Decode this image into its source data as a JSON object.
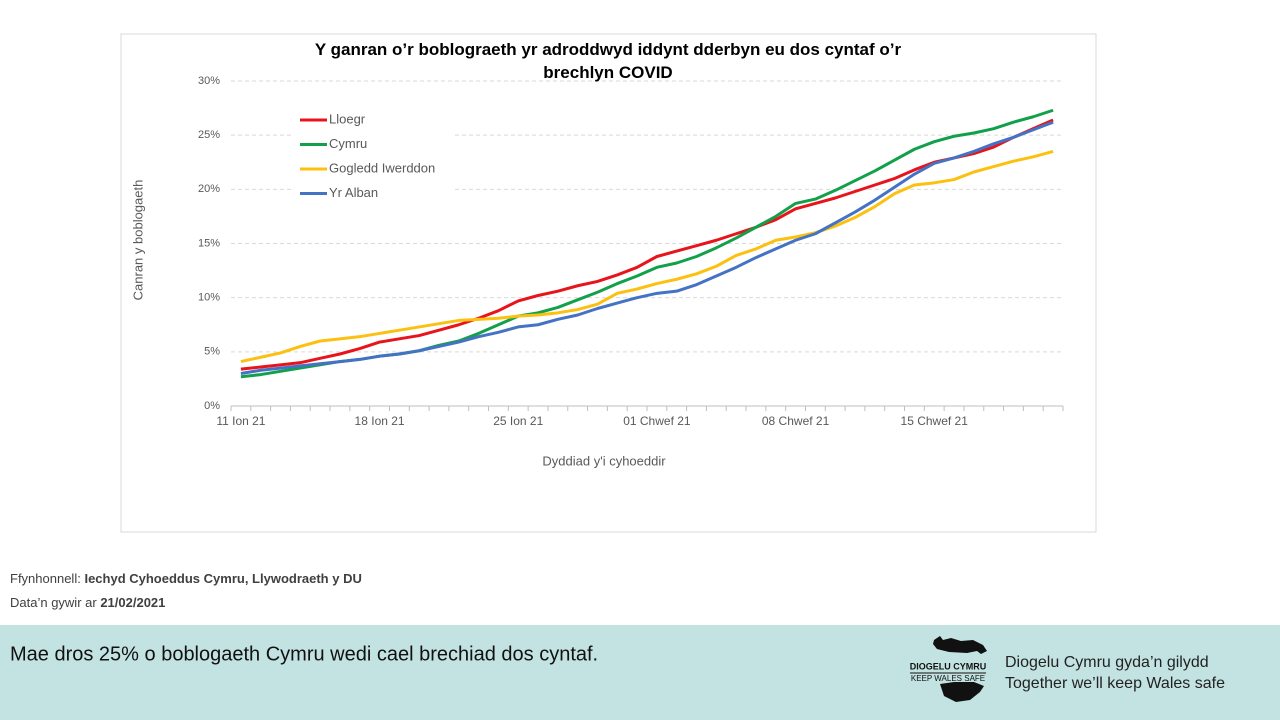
{
  "chart_data": {
    "type": "line",
    "title": "Y ganran o’r boblograeth yr adroddwyd iddynt dderbyn eu dos cyntaf o’r brechlyn COVID",
    "y_label": "Canran y boblogaeth",
    "x_label": "Dyddiad y'i cyhoeddir",
    "categories": [
      "11 Ion 21",
      null,
      null,
      null,
      null,
      null,
      null,
      "18 Ion 21",
      null,
      null,
      null,
      null,
      null,
      null,
      "25 Ion 21",
      null,
      null,
      null,
      null,
      null,
      null,
      "01 Chwef 21",
      null,
      null,
      null,
      null,
      null,
      null,
      "08 Chwef 21",
      null,
      null,
      null,
      null,
      null,
      null,
      "15 Chwef 21",
      null,
      null,
      null,
      null,
      null,
      null
    ],
    "series": [
      {
        "name": "Lloegr",
        "color": "#e8141b",
        "values": [
          3.4,
          3.6,
          3.8,
          4.0,
          4.4,
          4.8,
          5.3,
          5.9,
          6.2,
          6.5,
          7.0,
          7.5,
          8.1,
          8.8,
          9.7,
          10.2,
          10.6,
          11.1,
          11.5,
          12.1,
          12.8,
          13.8,
          14.3,
          14.8,
          15.3,
          15.9,
          16.5,
          17.2,
          18.2,
          18.7,
          19.2,
          19.8,
          20.4,
          21.0,
          21.8,
          22.5,
          22.9,
          23.3,
          23.9,
          24.8,
          25.6,
          26.4
        ]
      },
      {
        "name": "Cymru",
        "color": "#12a04a",
        "values": [
          2.7,
          2.9,
          3.2,
          3.5,
          3.8,
          4.1,
          4.3,
          4.6,
          4.8,
          5.1,
          5.6,
          6.0,
          6.7,
          7.5,
          8.3,
          8.6,
          9.1,
          9.8,
          10.5,
          11.3,
          12.0,
          12.8,
          13.2,
          13.8,
          14.6,
          15.5,
          16.5,
          17.5,
          18.7,
          19.1,
          19.9,
          20.8,
          21.7,
          22.7,
          23.7,
          24.4,
          24.9,
          25.2,
          25.6,
          26.2,
          26.7,
          27.3
        ]
      },
      {
        "name": "Gogledd Iwerddon",
        "color": "#fcc010",
        "values": [
          4.1,
          4.5,
          4.9,
          5.5,
          6.0,
          6.2,
          6.4,
          6.7,
          7.0,
          7.3,
          7.6,
          7.9,
          8.0,
          8.1,
          8.3,
          8.4,
          8.6,
          8.9,
          9.4,
          10.4,
          10.8,
          11.3,
          11.7,
          12.2,
          12.9,
          13.9,
          14.5,
          15.3,
          15.6,
          16.0,
          16.6,
          17.4,
          18.4,
          19.6,
          20.4,
          20.6,
          20.9,
          21.6,
          22.1,
          22.6,
          23.0,
          23.5
        ]
      },
      {
        "name": "Yr Alban",
        "color": "#4472c4",
        "values": [
          3.0,
          3.3,
          3.5,
          3.7,
          3.9,
          4.1,
          4.3,
          4.6,
          4.8,
          5.1,
          5.5,
          5.9,
          6.4,
          6.8,
          7.3,
          7.5,
          8.0,
          8.4,
          9.0,
          9.5,
          10.0,
          10.4,
          10.6,
          11.2,
          12.0,
          12.8,
          13.7,
          14.5,
          15.3,
          15.9,
          16.9,
          17.9,
          19.0,
          20.2,
          21.4,
          22.4,
          22.9,
          23.5,
          24.2,
          24.8,
          25.5,
          26.2
        ]
      }
    ],
    "ylim": [
      0,
      30
    ],
    "yticks": [
      {
        "value": 0,
        "label": "0%"
      },
      {
        "value": 5,
        "label": "5%"
      },
      {
        "value": 10,
        "label": "10%"
      },
      {
        "value": 15,
        "label": "15%"
      },
      {
        "value": 20,
        "label": "20%"
      },
      {
        "value": 25,
        "label": "25%"
      },
      {
        "value": 30,
        "label": "30%"
      }
    ],
    "grid": true,
    "legend": "top-left"
  },
  "source": {
    "label": "Ffynhonnell:",
    "value": "Iechyd Cyhoeddus Cymru, Llywodraeth y DU"
  },
  "date": {
    "label": "Data’n gywir ar",
    "value": "21/02/2021"
  },
  "footer": {
    "message": "Mae dros 25% o boblogaeth Cymru wedi cael brechiad dos cyntaf.",
    "logo_line1": "DIOGELU CYMRU",
    "logo_line2": "KEEP WALES SAFE",
    "slogan_welsh": "Diogelu Cymru gyda’n gilydd",
    "slogan_english": "Together we’ll keep Wales safe"
  }
}
